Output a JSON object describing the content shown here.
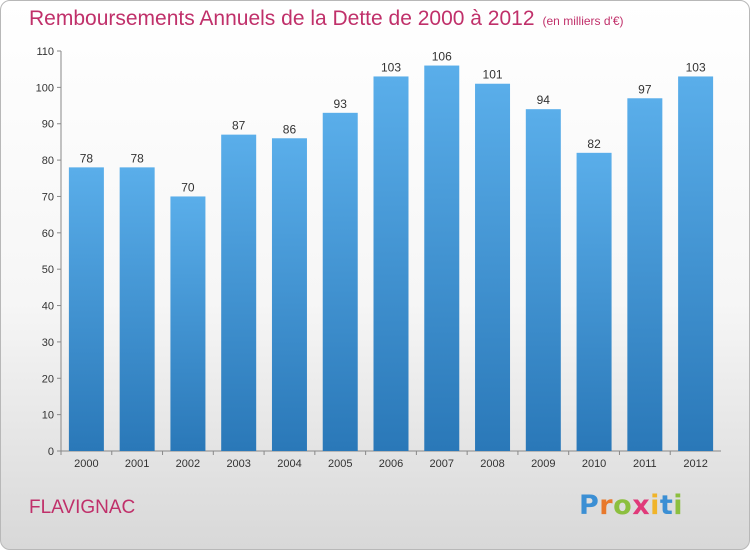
{
  "chart_data": {
    "type": "bar",
    "title": "Remboursements Annuels de la Dette de 2000 à 2012",
    "unit": "(en milliers d'€)",
    "categories": [
      "2000",
      "2001",
      "2002",
      "2003",
      "2004",
      "2005",
      "2006",
      "2007",
      "2008",
      "2009",
      "2010",
      "2011",
      "2012"
    ],
    "values": [
      78,
      78,
      70,
      87,
      86,
      93,
      103,
      106,
      101,
      94,
      82,
      97,
      103
    ],
    "ylim": [
      0,
      110
    ],
    "yticks": [
      0,
      10,
      20,
      30,
      40,
      50,
      60,
      70,
      80,
      90,
      100,
      110
    ],
    "grid": false,
    "bar_color_top": "#5aaeea",
    "bar_color_bottom": "#2a78b8"
  },
  "location": "FLAVIGNAC",
  "logo": {
    "letters": [
      "P",
      "r",
      "o",
      "x",
      "i",
      "t",
      "i"
    ],
    "colors": [
      "#3b8fd4",
      "#e8792c",
      "#8cbf3f",
      "#e03a7a",
      "#f0b429",
      "#3b8fd4",
      "#8cbf3f"
    ]
  },
  "colors": {
    "accent": "#c0306a"
  }
}
